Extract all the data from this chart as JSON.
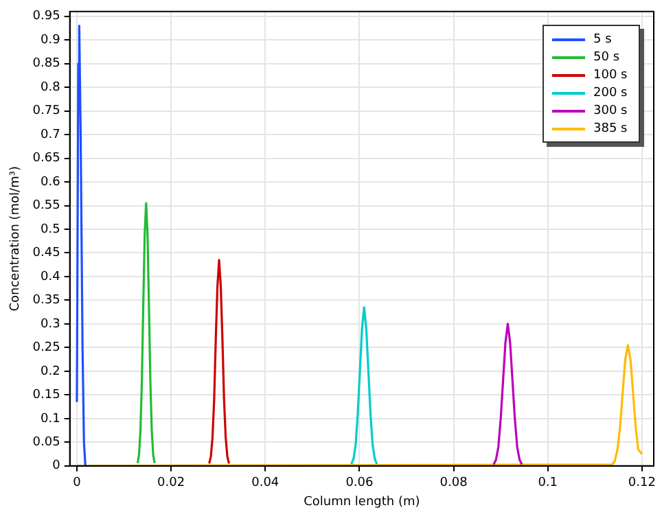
{
  "chart_data": {
    "type": "line",
    "xlabel": "Column length (m)",
    "ylabel": "Concentration (mol/m³)",
    "xlim": [
      -0.0015,
      0.1225
    ],
    "xticks": [
      0,
      0.02,
      0.04,
      0.06,
      0.08,
      0.1,
      0.12
    ],
    "ylim": [
      0,
      0.96
    ],
    "yticks": [
      0,
      0.05,
      0.1,
      0.15,
      0.2,
      0.25,
      0.3,
      0.35,
      0.4,
      0.45,
      0.5,
      0.55,
      0.6,
      0.65,
      0.7,
      0.75,
      0.8,
      0.85,
      0.9,
      0.95
    ],
    "grid": true,
    "legend": "top right",
    "marker": "none",
    "line_style": "solid",
    "series": [
      {
        "name": "5 s",
        "color": "#1f4fff",
        "x": [
          0,
          0.0003,
          0.0005,
          0.0008,
          0.0012,
          0.0015,
          0.0018
        ],
        "values": [
          0.135,
          0.85,
          0.93,
          0.7,
          0.25,
          0.05,
          0
        ]
      },
      {
        "name": "50 s",
        "color": "#22bb33",
        "x": [
          0.0129,
          0.0132,
          0.0135,
          0.0138,
          0.0141,
          0.0144,
          0.0147,
          0.015,
          0.0153,
          0.0156,
          0.0159,
          0.0162,
          0.0165
        ],
        "values": [
          0.006,
          0.024,
          0.075,
          0.18,
          0.34,
          0.49,
          0.555,
          0.49,
          0.34,
          0.18,
          0.075,
          0.024,
          0.006
        ]
      },
      {
        "name": "100 s",
        "color": "#cc0000",
        "x": [
          0.0281,
          0.02845,
          0.0288,
          0.02915,
          0.0295,
          0.02985,
          0.0302,
          0.03055,
          0.0309,
          0.03125,
          0.0316,
          0.03195,
          0.0323
        ],
        "values": [
          0.005,
          0.02,
          0.06,
          0.14,
          0.27,
          0.38,
          0.435,
          0.38,
          0.27,
          0.14,
          0.06,
          0.02,
          0.005
        ]
      },
      {
        "name": "200 s",
        "color": "#00cccc",
        "x": [
          0.0583,
          0.05875,
          0.0592,
          0.05965,
          0.0601,
          0.06055,
          0.061,
          0.06145,
          0.0619,
          0.06235,
          0.0628,
          0.06325,
          0.0637
        ],
        "values": [
          0.004,
          0.015,
          0.045,
          0.11,
          0.2,
          0.29,
          0.335,
          0.29,
          0.2,
          0.11,
          0.045,
          0.015,
          0.004
        ]
      },
      {
        "name": "300 s",
        "color": "#bb00bb",
        "x": [
          0.0885,
          0.089,
          0.0895,
          0.09,
          0.0905,
          0.091,
          0.0915,
          0.092,
          0.0925,
          0.093,
          0.0935,
          0.094,
          0.0945
        ],
        "values": [
          0.003,
          0.013,
          0.04,
          0.1,
          0.18,
          0.26,
          0.3,
          0.26,
          0.18,
          0.1,
          0.04,
          0.013,
          0.003
        ]
      },
      {
        "name": "385 s",
        "color": "#ffbb00",
        "x": [
          0,
          0.1137,
          0.11425,
          0.1148,
          0.11535,
          0.1159,
          0.11645,
          0.117,
          0.11755,
          0.1181,
          0.11865,
          0.1192,
          0.12
        ],
        "values": [
          0,
          0.003,
          0.011,
          0.035,
          0.083,
          0.155,
          0.225,
          0.255,
          0.225,
          0.155,
          0.083,
          0.035,
          0.025
        ]
      }
    ]
  }
}
